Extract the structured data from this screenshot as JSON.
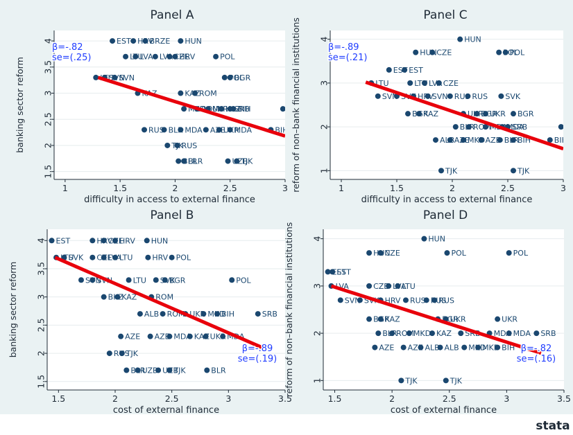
{
  "colors": {
    "background": "#eaf2f3",
    "panel_bg": "#ffffff",
    "point": "#1a476f",
    "fit_line": "#e8000b",
    "label": "#1a476f",
    "stat": "#1f3cff",
    "text": "#1e2a36"
  },
  "logo_text": "stata",
  "chart_data": [
    {
      "type": "scatter",
      "title": "Panel A",
      "xlabel": "difficulty in access to external finance",
      "ylabel": "banking sector reform",
      "xlim": [
        0.9,
        3.0
      ],
      "ylim": [
        1.35,
        4.2
      ],
      "xticks": [
        "1",
        "1.5",
        "2",
        "2.5",
        "3"
      ],
      "yticks": [
        "1.5",
        "2",
        "2.5",
        "3",
        "3.5",
        "4"
      ],
      "grid": true,
      "fit_line": [
        [
          1.3,
          3.3
        ],
        [
          3.0,
          2.18
        ]
      ],
      "annotation": {
        "text": [
          "β=-.82",
          "se=(.25)"
        ],
        "position": "top-left"
      },
      "points": [
        [
          1.43,
          4,
          "EST"
        ],
        [
          1.62,
          4,
          "HRV"
        ],
        [
          1.73,
          4,
          "BRZE"
        ],
        [
          2.05,
          4,
          "HUN"
        ],
        [
          1.55,
          3.7,
          "LTU"
        ],
        [
          1.64,
          3.7,
          "LVA"
        ],
        [
          1.82,
          3.7,
          "LVA"
        ],
        [
          1.95,
          3.7,
          "CZE"
        ],
        [
          2.0,
          3.7,
          "HRV"
        ],
        [
          2.37,
          3.7,
          "POL"
        ],
        [
          1.28,
          3.3,
          "LTU"
        ],
        [
          1.36,
          3.3,
          "SVN"
        ],
        [
          1.45,
          3.3,
          "SVN"
        ],
        [
          2.45,
          3.3,
          "POL"
        ],
        [
          2.5,
          3.3,
          "BGR"
        ],
        [
          1.66,
          3,
          "KAZ"
        ],
        [
          2.05,
          3,
          "KAZ"
        ],
        [
          2.18,
          3,
          "ROM"
        ],
        [
          2.08,
          2.7,
          "MKD"
        ],
        [
          2.2,
          2.7,
          "ROM"
        ],
        [
          2.3,
          2.7,
          "UKR"
        ],
        [
          2.42,
          2.7,
          "KAZ"
        ],
        [
          2.5,
          2.7,
          "SRB"
        ],
        [
          2.53,
          2.7,
          "BIH"
        ],
        [
          2.98,
          2.7,
          "S"
        ],
        [
          1.72,
          2.3,
          "RUS"
        ],
        [
          1.9,
          2.3,
          "BLR"
        ],
        [
          2.05,
          2.3,
          "MDA"
        ],
        [
          2.28,
          2.3,
          "AZE"
        ],
        [
          2.4,
          2.3,
          "UKR"
        ],
        [
          2.5,
          2.3,
          "MDA"
        ],
        [
          2.87,
          2.3,
          "BIH"
        ],
        [
          1.93,
          2,
          "TJK"
        ],
        [
          2.02,
          2,
          "RUS"
        ],
        [
          2.03,
          1.7,
          "BLR"
        ],
        [
          2.08,
          1.7,
          "BLR"
        ],
        [
          2.48,
          1.7,
          "UZB"
        ],
        [
          2.56,
          1.7,
          "TJK"
        ]
      ]
    },
    {
      "type": "scatter",
      "title": "Panel C",
      "xlabel": "difficulty in access to external finance",
      "ylabel": "reform of non–bank financial institutions",
      "xlim": [
        0.9,
        3.0
      ],
      "ylim": [
        0.8,
        4.2
      ],
      "xticks": [
        "1",
        "1.5",
        "2",
        "2.5",
        "3"
      ],
      "yticks": [
        "1",
        "2",
        "3",
        "4"
      ],
      "grid": true,
      "fit_line": [
        [
          1.22,
          3.02
        ],
        [
          3.0,
          1.5
        ]
      ],
      "annotation": {
        "text": [
          "β=-.89",
          "se=(.21)"
        ],
        "position": "top-left"
      },
      "points": [
        [
          2.07,
          4,
          "HUN"
        ],
        [
          1.67,
          3.7,
          "HUN"
        ],
        [
          1.82,
          3.7,
          "CZE"
        ],
        [
          2.42,
          3.7,
          "POL"
        ],
        [
          2.48,
          3.7,
          "POL"
        ],
        [
          1.43,
          3.3,
          "EST"
        ],
        [
          1.57,
          3.3,
          "EST"
        ],
        [
          1.27,
          3,
          "LTU"
        ],
        [
          1.62,
          3,
          "LTU"
        ],
        [
          1.75,
          3,
          "LVA"
        ],
        [
          1.88,
          3,
          "CZE"
        ],
        [
          1.33,
          2.7,
          "SVN"
        ],
        [
          1.5,
          2.7,
          "SVK"
        ],
        [
          1.65,
          2.7,
          "HRV"
        ],
        [
          1.78,
          2.7,
          "SVN"
        ],
        [
          1.98,
          2.7,
          "RUS"
        ],
        [
          2.14,
          2.7,
          "RUS"
        ],
        [
          2.44,
          2.7,
          "SVK"
        ],
        [
          1.6,
          2.3,
          "BGR"
        ],
        [
          1.7,
          2.3,
          "KAZ"
        ],
        [
          2.1,
          2.3,
          "UKR"
        ],
        [
          2.22,
          2.3,
          "BGR"
        ],
        [
          2.3,
          2.3,
          "UKR"
        ],
        [
          2.55,
          2.3,
          "BGR"
        ],
        [
          2.03,
          2,
          "BLR"
        ],
        [
          2.15,
          2,
          "ROM"
        ],
        [
          2.3,
          2,
          "MDA"
        ],
        [
          2.45,
          2,
          "MDA"
        ],
        [
          2.5,
          2,
          "SRB"
        ],
        [
          2.98,
          2,
          "SR"
        ],
        [
          1.85,
          1.7,
          "ALB"
        ],
        [
          1.98,
          1.7,
          "AZE"
        ],
        [
          2.1,
          1.7,
          "MKD"
        ],
        [
          2.26,
          1.7,
          "AZE"
        ],
        [
          2.43,
          1.7,
          "BLR"
        ],
        [
          2.55,
          1.7,
          "BIH"
        ],
        [
          2.88,
          1.7,
          "BIH"
        ],
        [
          1.9,
          1,
          "TJK"
        ],
        [
          2.55,
          1,
          "TJK"
        ]
      ]
    },
    {
      "type": "scatter",
      "title": "Panel B",
      "xlabel": "cost of external finance",
      "ylabel": "banking sector reform",
      "xlim": [
        1.4,
        3.5
      ],
      "ylim": [
        1.35,
        4.2
      ],
      "xticks": [
        "1.5",
        "2",
        "2.5",
        "3",
        "3.5"
      ],
      "yticks": [
        "1.5",
        "2",
        "2.5",
        "3",
        "3.5",
        "4"
      ],
      "grid": true,
      "fit_line": [
        [
          1.47,
          3.7
        ],
        [
          3.3,
          2.1
        ]
      ],
      "annotation": {
        "text": [
          "β=-.89",
          "se=(.19)"
        ],
        "position": "bottom-right"
      },
      "points": [
        [
          1.44,
          4,
          "EST"
        ],
        [
          1.8,
          4,
          "HRV"
        ],
        [
          1.9,
          4,
          "CZE"
        ],
        [
          2.0,
          4,
          "HRV"
        ],
        [
          2.28,
          4,
          "HUN"
        ],
        [
          1.48,
          3.7,
          "LTU"
        ],
        [
          1.55,
          3.7,
          "SVK"
        ],
        [
          1.8,
          3.7,
          "CZE"
        ],
        [
          1.9,
          3.7,
          "LVA"
        ],
        [
          2.0,
          3.7,
          "LTU"
        ],
        [
          2.29,
          3.7,
          "HRV"
        ],
        [
          2.5,
          3.7,
          "POL"
        ],
        [
          1.7,
          3.3,
          "SVN"
        ],
        [
          1.8,
          3.3,
          "SVN"
        ],
        [
          2.12,
          3.3,
          "LTU"
        ],
        [
          2.36,
          3.3,
          "SVK"
        ],
        [
          2.44,
          3.3,
          "BGR"
        ],
        [
          3.03,
          3.3,
          "POL"
        ],
        [
          1.9,
          3,
          "BKZ"
        ],
        [
          2.02,
          3,
          "KAZ"
        ],
        [
          2.32,
          3,
          "ROM"
        ],
        [
          2.22,
          2.7,
          "ALB"
        ],
        [
          2.42,
          2.7,
          "ROM"
        ],
        [
          2.62,
          2.7,
          "UKR"
        ],
        [
          2.78,
          2.7,
          "MKD"
        ],
        [
          2.9,
          2.7,
          "BIH"
        ],
        [
          3.26,
          2.7,
          "SRB"
        ],
        [
          2.05,
          2.3,
          "AZE"
        ],
        [
          2.31,
          2.3,
          "AZE"
        ],
        [
          2.48,
          2.3,
          "MDA"
        ],
        [
          2.66,
          2.3,
          "KAZ"
        ],
        [
          2.8,
          2.3,
          "UKR"
        ],
        [
          2.95,
          2.3,
          "MDA"
        ],
        [
          1.95,
          2,
          "RUS"
        ],
        [
          2.06,
          2,
          "TJK"
        ],
        [
          2.1,
          1.7,
          "BLR"
        ],
        [
          2.2,
          1.7,
          "UZB"
        ],
        [
          2.38,
          1.7,
          "UZB"
        ],
        [
          2.48,
          1.7,
          "TJK"
        ],
        [
          2.81,
          1.7,
          "BLR"
        ]
      ]
    },
    {
      "type": "scatter",
      "title": "Panel D",
      "xlabel": "cost of external finance",
      "ylabel": "reform of non–bank financial institutions",
      "xlim": [
        1.4,
        3.5
      ],
      "ylim": [
        0.8,
        4.2
      ],
      "xticks": [
        "1.5",
        "2",
        "2.5",
        "3",
        "3.5"
      ],
      "yticks": [
        "1",
        "2",
        "3",
        "4"
      ],
      "grid": true,
      "fit_line": [
        [
          1.47,
          3.0
        ],
        [
          3.3,
          1.58
        ]
      ],
      "annotation": {
        "text": [
          "β=-.82",
          "se=(.16)"
        ],
        "position": "bottom-right"
      },
      "points": [
        [
          2.28,
          4,
          "HUN"
        ],
        [
          1.8,
          3.7,
          "HUN"
        ],
        [
          1.9,
          3.7,
          "CZE"
        ],
        [
          2.48,
          3.7,
          "POL"
        ],
        [
          3.02,
          3.7,
          "POL"
        ],
        [
          1.44,
          3.3,
          "EST"
        ],
        [
          1.48,
          3.3,
          "EST"
        ],
        [
          1.47,
          3,
          "LVA"
        ],
        [
          1.8,
          3,
          "CZE"
        ],
        [
          1.97,
          3,
          "LVA"
        ],
        [
          2.05,
          3,
          "LTU"
        ],
        [
          1.55,
          2.7,
          "SVN"
        ],
        [
          1.72,
          2.7,
          "SVK"
        ],
        [
          1.9,
          2.7,
          "HRV"
        ],
        [
          2.12,
          2.7,
          "RUS"
        ],
        [
          2.3,
          2.7,
          "RUS"
        ],
        [
          2.37,
          2.7,
          "RUS"
        ],
        [
          1.8,
          2.3,
          "BGR"
        ],
        [
          1.9,
          2.3,
          "KAZ"
        ],
        [
          2.4,
          2.3,
          "BGR"
        ],
        [
          2.47,
          2.3,
          "UKR"
        ],
        [
          2.92,
          2.3,
          "UKR"
        ],
        [
          1.88,
          2,
          "BLR"
        ],
        [
          2.0,
          2,
          "ROM"
        ],
        [
          2.15,
          2,
          "MKD"
        ],
        [
          2.35,
          2,
          "KAZ"
        ],
        [
          2.6,
          2,
          "SRB"
        ],
        [
          2.85,
          2,
          "MDA"
        ],
        [
          3.02,
          2,
          "MDA"
        ],
        [
          3.26,
          2,
          "SRB"
        ],
        [
          1.85,
          1.7,
          "AZE"
        ],
        [
          2.1,
          1.7,
          "AZE"
        ],
        [
          2.25,
          1.7,
          "ALB"
        ],
        [
          2.42,
          1.7,
          "ALB"
        ],
        [
          2.63,
          1.7,
          "MKD"
        ],
        [
          2.75,
          1.7,
          "MKD"
        ],
        [
          2.92,
          1.7,
          "BIH"
        ],
        [
          2.08,
          1,
          "TJK"
        ],
        [
          2.47,
          1,
          "TJK"
        ]
      ]
    }
  ]
}
